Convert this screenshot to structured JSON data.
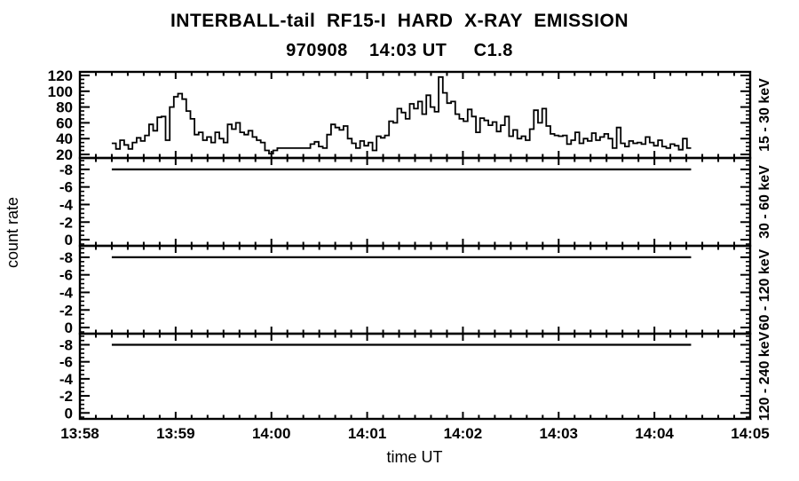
{
  "header": {
    "title": "INTERBALL-tail  RF15-I  HARD  X-RAY  EMISSION",
    "subtitle": "970908    14:03 UT     C1.8"
  },
  "colors": {
    "foreground": "#000000",
    "background": "#ffffff"
  },
  "chart_data": {
    "type": "line",
    "title": "INTERBALL-tail  RF15-I  HARD  X-RAY  EMISSION",
    "subtitle": "970908    14:03 UT     C1.8",
    "xlabel": "time UT",
    "ylabel": "count rate",
    "grid": false,
    "x_axis": {
      "tick_labels": [
        "13:58",
        "13:59",
        "14:00",
        "14:01",
        "14:02",
        "14:03",
        "14:04",
        "14:05"
      ],
      "total_minutes": 7,
      "minor_per_major": 6
    },
    "series_time": {
      "start_min_after_1358": 0.333,
      "end_min_after_1358": 6.383
    },
    "panels": [
      {
        "label": "15 - 30 keV",
        "yticks": [
          120,
          100,
          80,
          60,
          40,
          20
        ],
        "ylim_bottom": 15.5,
        "ylim_top": 124.5,
        "minor_step": 5,
        "series": {
          "kind": "step",
          "values": [
            34,
            27,
            38,
            32,
            27,
            35,
            41,
            37,
            44,
            58,
            50,
            67,
            68,
            38,
            80,
            93,
            97,
            90,
            75,
            65,
            45,
            48,
            38,
            42,
            35,
            48,
            40,
            35,
            58,
            52,
            60,
            48,
            45,
            50,
            42,
            38,
            35,
            25,
            21,
            25,
            28,
            28,
            28,
            28,
            28,
            28,
            28,
            28,
            33,
            36,
            30,
            28,
            45,
            58,
            54,
            51,
            56,
            40,
            34,
            28,
            37,
            31,
            35,
            25,
            43,
            41,
            44,
            62,
            60,
            78,
            73,
            65,
            84,
            78,
            87,
            71,
            95,
            80,
            74,
            118,
            98,
            85,
            87,
            71,
            65,
            62,
            77,
            68,
            48,
            66,
            63,
            57,
            61,
            49,
            57,
            68,
            43,
            51,
            40,
            43,
            38,
            52,
            76,
            60,
            78,
            56,
            46,
            44,
            43,
            44,
            33,
            38,
            48,
            34,
            40,
            37,
            47,
            38,
            42,
            46,
            40,
            28,
            54,
            34,
            30,
            37,
            34,
            35,
            33,
            42,
            35,
            31,
            38,
            30,
            28,
            33,
            31,
            26,
            40,
            28
          ]
        }
      },
      {
        "label": "30 - 60 keV",
        "yticks": [
          -8,
          -6,
          -4,
          -2,
          0
        ],
        "ylim_bottom": 0.7,
        "ylim_top": -9.3,
        "minor_step": 0.5,
        "series": {
          "kind": "hline",
          "value": -8
        }
      },
      {
        "label": "60 - 120 keV",
        "yticks": [
          -8,
          -6,
          -4,
          -2,
          0
        ],
        "ylim_bottom": 0.7,
        "ylim_top": -9.3,
        "minor_step": 0.5,
        "series": {
          "kind": "hline",
          "value": -8
        }
      },
      {
        "label": "120 - 240 keV",
        "yticks": [
          -8,
          -6,
          -4,
          -2,
          0
        ],
        "ylim_bottom": 0.7,
        "ylim_top": -9.3,
        "minor_step": 0.5,
        "series": {
          "kind": "hline",
          "value": -8
        }
      }
    ]
  }
}
